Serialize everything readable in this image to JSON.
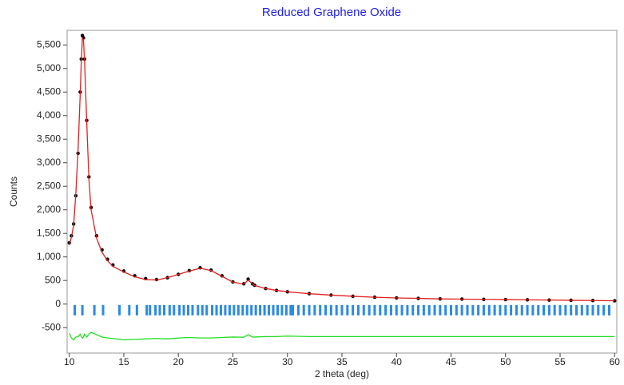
{
  "chart_data": {
    "type": "xrd",
    "title": "Reduced Graphene Oxide",
    "x_label": "2 theta (deg)",
    "y_label": "Counts",
    "xlim": [
      9.8,
      60.2
    ],
    "ylim": [
      -1040,
      5810
    ],
    "xticks": [
      10,
      15,
      20,
      25,
      30,
      35,
      40,
      45,
      50,
      55,
      60
    ],
    "yticks": [
      -500,
      0,
      500,
      {
        "value": 1000,
        "label": "1,000"
      },
      {
        "value": 1500,
        "label": "1,500"
      },
      {
        "value": 2000,
        "label": "2,000"
      },
      {
        "value": 2500,
        "label": "2,500"
      },
      {
        "value": 3000,
        "label": "3,000"
      },
      {
        "value": 3500,
        "label": "3,500"
      },
      {
        "value": 4000,
        "label": "4,000"
      },
      {
        "value": 4500,
        "label": "4,500"
      },
      {
        "value": 5000,
        "label": "5,000"
      },
      {
        "value": 5500,
        "label": "5,500"
      }
    ],
    "x": [
      10,
      10.2,
      10.4,
      10.6,
      10.8,
      11.0,
      11.1,
      11.2,
      11.3,
      11.4,
      11.6,
      11.8,
      12.0,
      12.5,
      13,
      13.5,
      14,
      15,
      16,
      17,
      18,
      19,
      20,
      21,
      22,
      23,
      24,
      25,
      26,
      26.4,
      26.8,
      27,
      28,
      29,
      30,
      32,
      34,
      36,
      38,
      40,
      42,
      44,
      46,
      48,
      50,
      52,
      54,
      56,
      58,
      60
    ],
    "series": [
      {
        "color": "#000000",
        "style": "markers",
        "values": [
          1300,
          1450,
          1700,
          2300,
          3200,
          4500,
          5200,
          5700,
          5650,
          5200,
          3900,
          2700,
          2050,
          1450,
          1150,
          950,
          830,
          700,
          600,
          540,
          520,
          560,
          630,
          710,
          770,
          720,
          600,
          470,
          430,
          530,
          430,
          400,
          330,
          290,
          260,
          220,
          190,
          165,
          145,
          130,
          120,
          110,
          105,
          100,
          95,
          90,
          85,
          80,
          75,
          70
        ]
      },
      {
        "color": "#e02020",
        "style": "line",
        "values": [
          1250,
          1420,
          1680,
          2350,
          3250,
          4450,
          5150,
          5650,
          5600,
          5150,
          3850,
          2650,
          2000,
          1400,
          1100,
          920,
          800,
          680,
          580,
          520,
          510,
          560,
          630,
          700,
          760,
          710,
          590,
          465,
          425,
          510,
          425,
          395,
          330,
          290,
          260,
          220,
          190,
          165,
          145,
          130,
          120,
          110,
          105,
          100,
          95,
          90,
          85,
          80,
          75,
          70
        ]
      },
      {
        "color": "#22dd22",
        "style": "line",
        "values": [
          -620,
          -720,
          -760,
          -700,
          -690,
          -640,
          -690,
          -720,
          -700,
          -640,
          -700,
          -640,
          -600,
          -650,
          -700,
          -720,
          -730,
          -760,
          -750,
          -740,
          -730,
          -740,
          -720,
          -710,
          -720,
          -720,
          -710,
          -700,
          -705,
          -650,
          -700,
          -700,
          -690,
          -690,
          -680,
          -690,
          -690,
          -690,
          -690,
          -690,
          -690,
          -690,
          -690,
          -690,
          -690,
          -690,
          -690,
          -690,
          -690,
          -690
        ]
      }
    ],
    "reflections": {
      "color": "#2a8ae6",
      "x": [
        10.5,
        11.2,
        12.3,
        13.1,
        14.6,
        15.5,
        16.2,
        17.1,
        17.4,
        17.9,
        18.3,
        18.7,
        19.2,
        19.6,
        20.1,
        20.5,
        20.9,
        21.3,
        21.8,
        22.2,
        22.6,
        23.1,
        23.5,
        23.9,
        24.3,
        24.7,
        25.1,
        25.5,
        25.9,
        26.3,
        26.7,
        27.1,
        27.5,
        27.9,
        28.3,
        28.7,
        29.1,
        29.5,
        29.9,
        30.3,
        30.5,
        31,
        31.5,
        32,
        32.5,
        33,
        33.5,
        34,
        34.5,
        35,
        35.5,
        36,
        36.5,
        37,
        37.5,
        38,
        38.5,
        39,
        39.5,
        40,
        40.5,
        41,
        41.5,
        42,
        42.5,
        43,
        43.5,
        44,
        44.5,
        45,
        45.5,
        46,
        46.5,
        47,
        47.5,
        48,
        48.5,
        49,
        49.5,
        50,
        50.5,
        51,
        51.5,
        52,
        52.5,
        53,
        53.5,
        54,
        54.5,
        55,
        55.5,
        56,
        56.5,
        57,
        57.5,
        58,
        58.5,
        59,
        59.5
      ]
    }
  }
}
